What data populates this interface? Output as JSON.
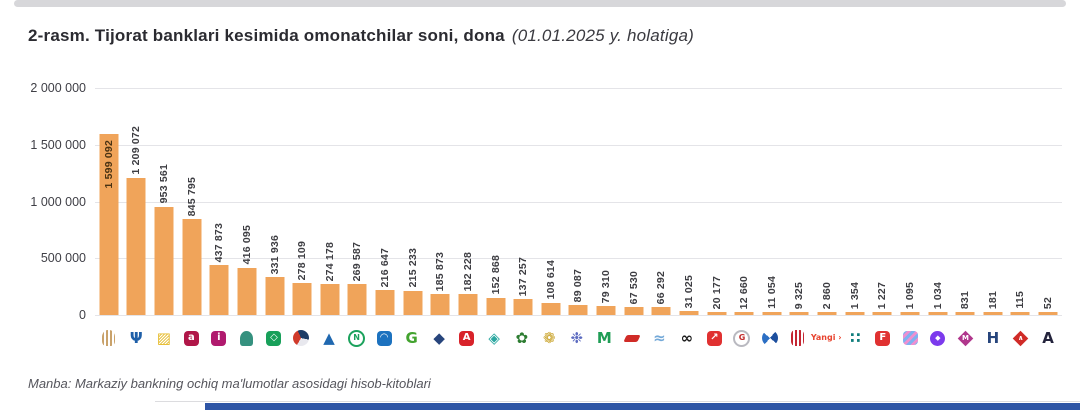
{
  "page": {
    "title_main": "2-rasm. Tijorat banklari kesimida omonatchilar soni, dona",
    "title_note": "(01.01.2025 y. holatiga)",
    "source": "Manba: Markaziy bankning ochiq ma'lumotlar asosidagi hisob-kitoblari"
  },
  "colors": {
    "bar": "#F0A45A",
    "grid": "#e4e4e8",
    "accent_strip": "#2E55A5",
    "top_strip": "#d7d7da"
  },
  "chart_data": {
    "type": "bar",
    "title": "2-rasm. Tijorat banklari kesimida omonatchilar soni, dona (01.01.2025 y. holatiga)",
    "xlabel": "",
    "ylabel": "",
    "ylim": [
      0,
      2000000
    ],
    "grid": true,
    "y_ticks": [
      "2 000 000",
      "1 500 000",
      "1 000 000",
      "500 000",
      "0"
    ],
    "categories": [
      "bank-1",
      "bank-2",
      "bank-3",
      "bank-4",
      "bank-5",
      "bank-6",
      "bank-7",
      "bank-8",
      "bank-9",
      "bank-10",
      "bank-11",
      "bank-12",
      "bank-13",
      "bank-14",
      "bank-15",
      "bank-16",
      "bank-17",
      "bank-18",
      "bank-19",
      "bank-20",
      "bank-21",
      "bank-22",
      "bank-23",
      "bank-24",
      "bank-25",
      "bank-26",
      "bank-27",
      "bank-28",
      "bank-29",
      "bank-30",
      "bank-31",
      "bank-32",
      "bank-33",
      "bank-34",
      "bank-35"
    ],
    "values": [
      1599092,
      1209072,
      953561,
      845795,
      437873,
      416095,
      331936,
      278109,
      274178,
      269587,
      216647,
      215233,
      185873,
      182228,
      152868,
      137257,
      108614,
      89087,
      79310,
      67530,
      66292,
      31025,
      20177,
      12660,
      11054,
      9325,
      2860,
      1354,
      1227,
      1095,
      1034,
      831,
      181,
      115,
      52
    ],
    "banks": [
      {
        "value": 1599092,
        "label": "1 599 092",
        "label_inside": true,
        "logo": {
          "desc": "beige-striped-shield-logo",
          "kind": "vstripes",
          "c1": "#C9A26B",
          "c2": "#ffffff",
          "radius": "45% 45% 30% 30%"
        }
      },
      {
        "value": 1209072,
        "label": "1 209 072",
        "logo": {
          "desc": "blue-trident-logo",
          "kind": "glyph",
          "glyph": "Ψ",
          "fg": "#1E5FA8"
        }
      },
      {
        "value": 953561,
        "label": "953 561",
        "logo": {
          "desc": "gold-hatched-square-logo",
          "kind": "glyph",
          "glyph": "▨",
          "fg": "#E4B71F"
        }
      },
      {
        "value": 845795,
        "label": "845 795",
        "logo": {
          "desc": "crimson-a-tile-logo",
          "kind": "tile",
          "bg": "#B01648",
          "glyph": "a",
          "fg": "#ffffff"
        }
      },
      {
        "value": 437873,
        "label": "437 873",
        "logo": {
          "desc": "magenta-i-tile-logo",
          "kind": "tile",
          "bg": "#B01A6E",
          "glyph": "i",
          "fg": "#ffffff"
        }
      },
      {
        "value": 416095,
        "label": "416 095",
        "logo": {
          "desc": "teal-dome-logo",
          "kind": "dome",
          "bg": "#35917F"
        }
      },
      {
        "value": 331936,
        "label": "331 936",
        "logo": {
          "desc": "green-tile-diamond-logo",
          "kind": "tile",
          "bg": "#18A05A",
          "glyph": "◇",
          "fg": "#ffffff"
        }
      },
      {
        "value": 278109,
        "label": "278 109",
        "logo": {
          "desc": "red-navy-swirl-logo",
          "kind": "swirl",
          "css": "conic-gradient(from 210deg, #D03A2B 0 35%, #1C3B66 35% 70%, #e8e8ee 70%)"
        }
      },
      {
        "value": 274178,
        "label": "274 178",
        "logo": {
          "desc": "blue-triangle-logo",
          "kind": "glyph",
          "glyph": "▲",
          "fg": "#2068B0"
        }
      },
      {
        "value": 269587,
        "label": "269 587",
        "logo": {
          "desc": "green-ring-n-logo",
          "kind": "ring",
          "bc": "#1CA25D",
          "glyph": "N",
          "fg": "#1CA25D"
        }
      },
      {
        "value": 216647,
        "label": "216 647",
        "logo": {
          "desc": "blue-tile-arc-logo",
          "kind": "tile",
          "bg": "#1C72BF",
          "glyph": "◠",
          "fg": "#ffffff"
        }
      },
      {
        "value": 215233,
        "label": "215 233",
        "logo": {
          "desc": "green-g-logo",
          "kind": "glyph",
          "glyph": "G",
          "fg": "#43A32F"
        }
      },
      {
        "value": 185873,
        "label": "185 873",
        "logo": {
          "desc": "navy-diamond-logo",
          "kind": "glyph",
          "glyph": "◆",
          "fg": "#27457C"
        }
      },
      {
        "value": 182228,
        "label": "182 228",
        "logo": {
          "desc": "red-tile-a-logo",
          "kind": "tile",
          "bg": "#D8232A",
          "glyph": "A",
          "fg": "#ffffff"
        }
      },
      {
        "value": 152868,
        "label": "152 868",
        "logo": {
          "desc": "teal-outline-diamond-logo",
          "kind": "glyph",
          "glyph": "◈",
          "fg": "#2AA7A0"
        }
      },
      {
        "value": 137257,
        "label": "137 257",
        "logo": {
          "desc": "green-flower-logo",
          "kind": "glyph",
          "glyph": "✿",
          "fg": "#2E7D32"
        }
      },
      {
        "value": 108614,
        "label": "108 614",
        "logo": {
          "desc": "gold-rosette-logo",
          "kind": "glyph",
          "glyph": "❁",
          "fg": "#C9A227"
        }
      },
      {
        "value": 89087,
        "label": "89 087",
        "logo": {
          "desc": "violet-flower-logo",
          "kind": "glyph",
          "glyph": "❉",
          "fg": "#5C6BC0"
        }
      },
      {
        "value": 79310,
        "label": "79 310",
        "logo": {
          "desc": "green-m-check-logo",
          "kind": "glyph",
          "glyph": "M",
          "fg": "#1F9D55"
        }
      },
      {
        "value": 67530,
        "label": "67 530",
        "logo": {
          "desc": "red-swoosh-logo",
          "kind": "skew",
          "bg": "#D02B27"
        }
      },
      {
        "value": 66292,
        "label": "66 292",
        "logo": {
          "desc": "lightblue-dolphin-logo",
          "kind": "glyph",
          "glyph": "≈",
          "fg": "#74A9D8"
        }
      },
      {
        "value": 31025,
        "label": "31 025",
        "logo": {
          "desc": "black-infinity-oc-logo",
          "kind": "glyph",
          "glyph": "∞",
          "fg": "#1a1a1a"
        }
      },
      {
        "value": 20177,
        "label": "20 177",
        "logo": {
          "desc": "red-tile-arrow-logo",
          "kind": "tile",
          "bg": "#E03131",
          "glyph": "↗",
          "fg": "#ffffff"
        }
      },
      {
        "value": 12660,
        "label": "12 660",
        "logo": {
          "desc": "gray-ring-red-g-logo",
          "kind": "ring",
          "bc": "#b9b9c0",
          "glyph": "G",
          "fg": "#C22A2A"
        }
      },
      {
        "value": 11054,
        "label": "11 054",
        "logo": {
          "desc": "blue-swirl-circle-logo",
          "kind": "swirl",
          "css": "conic-gradient(from 40deg, #1D4F9E 0 25%, #ffffff 25% 50%, #2C6FC4 50% 75%, #ffffff 75%)"
        }
      },
      {
        "value": 9325,
        "label": "9 325",
        "logo": {
          "desc": "red-wheat-sheaf-logo",
          "kind": "vstripes",
          "c1": "#C42531",
          "c2": "#ffffff",
          "radius": "30%"
        }
      },
      {
        "value": 2860,
        "label": "2 860",
        "logo": {
          "desc": "yangi-wordmark-logo",
          "kind": "text",
          "text": "Yangi ›",
          "fg": "#E8442F"
        }
      },
      {
        "value": 1354,
        "label": "1 354",
        "logo": {
          "desc": "teal-pinwheel-dots-logo",
          "kind": "glyph",
          "glyph": "∷",
          "fg": "#0E7C7B"
        }
      },
      {
        "value": 1227,
        "label": "1 227",
        "logo": {
          "desc": "red-tile-f-logo",
          "kind": "tile",
          "bg": "#E03131",
          "glyph": "F",
          "fg": "#ffffff"
        }
      },
      {
        "value": 1095,
        "label": "1 095",
        "logo": {
          "desc": "blue-pink-stripes-logo",
          "kind": "dstripes",
          "c1": "#7FB0F0",
          "c2": "#EE8FD0"
        }
      },
      {
        "value": 1034,
        "label": "1 034",
        "logo": {
          "desc": "purple-circle-emblem-logo",
          "kind": "circle",
          "bg": "#7C3AED",
          "glyph": "◆",
          "fg": "#ffffff"
        }
      },
      {
        "value": 831,
        "label": "831",
        "logo": {
          "desc": "magenta-diamond-m-logo",
          "kind": "diamond",
          "bg": "#B0368C",
          "glyph": "M",
          "fg": "#ffffff"
        }
      },
      {
        "value": 181,
        "label": "181",
        "logo": {
          "desc": "navy-h-logo",
          "kind": "glyph",
          "glyph": "H",
          "fg": "#27457C"
        }
      },
      {
        "value": 115,
        "label": "115",
        "logo": {
          "desc": "red-diamond-chevron-logo",
          "kind": "diamond",
          "bg": "#D02B27",
          "glyph": "∧",
          "fg": "#ffffff"
        }
      },
      {
        "value": 52,
        "label": "52",
        "logo": {
          "desc": "dark-a-logo",
          "kind": "glyph",
          "glyph": "A",
          "fg": "#23233C"
        }
      }
    ]
  }
}
